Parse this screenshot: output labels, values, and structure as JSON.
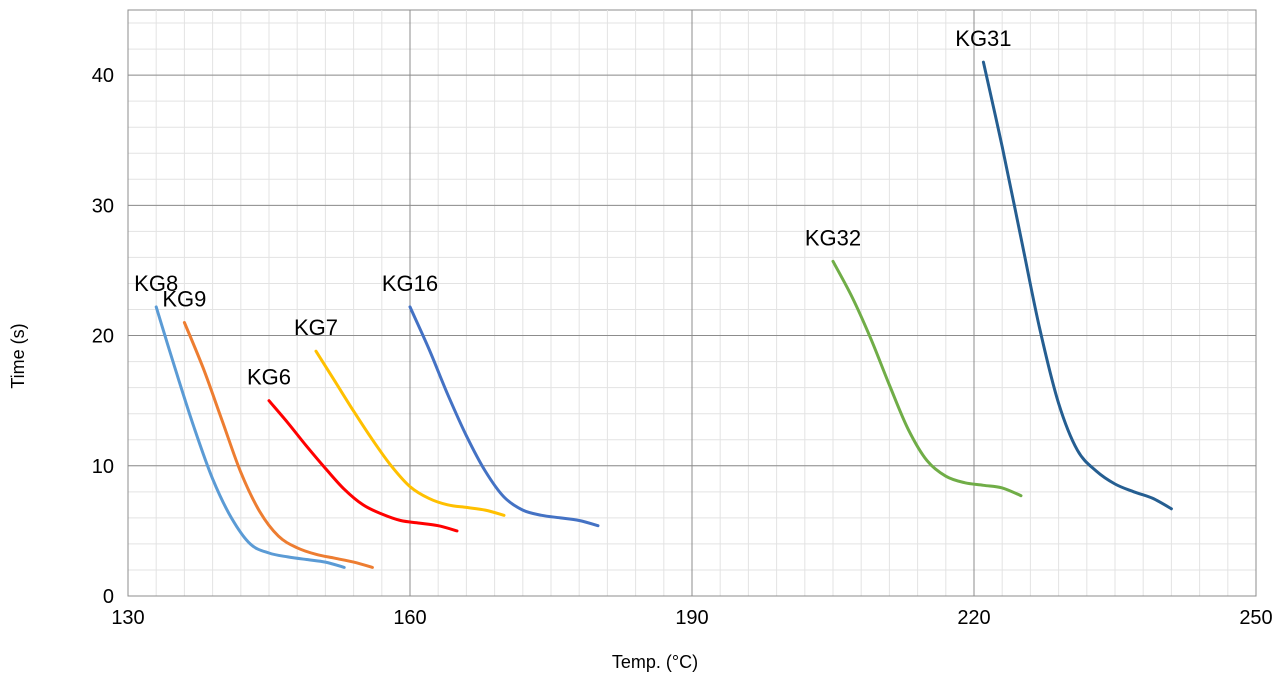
{
  "chart_data": {
    "type": "line",
    "title": "",
    "xlabel": "Temp. (°C)",
    "ylabel": "Time (s)",
    "xlim": [
      130,
      250
    ],
    "ylim": [
      0,
      45
    ],
    "xticks": [
      130,
      160,
      190,
      220,
      250
    ],
    "yticks": [
      0,
      10,
      20,
      30,
      40
    ],
    "major_grid": true,
    "minor_grid": true,
    "legend": "none",
    "series": [
      {
        "name": "KG8",
        "color": "#5b9bd5",
        "x": [
          133,
          135,
          137,
          139,
          141,
          143,
          145,
          147,
          149,
          151,
          153
        ],
        "y": [
          22.2,
          17.5,
          13.0,
          9.0,
          6.0,
          4.0,
          3.3,
          3.0,
          2.8,
          2.6,
          2.2
        ]
      },
      {
        "name": "KG9",
        "color": "#ed7d31",
        "x": [
          136,
          138,
          140,
          142,
          144,
          146,
          148,
          150,
          152,
          154,
          156
        ],
        "y": [
          21.0,
          17.5,
          13.5,
          9.5,
          6.5,
          4.6,
          3.7,
          3.2,
          2.9,
          2.6,
          2.2
        ]
      },
      {
        "name": "KG6",
        "color": "#ff0000",
        "x": [
          145,
          147,
          149,
          151,
          153,
          155,
          157,
          159,
          161,
          163,
          165
        ],
        "y": [
          15.0,
          13.3,
          11.5,
          9.8,
          8.2,
          7.0,
          6.3,
          5.8,
          5.6,
          5.4,
          5.0
        ]
      },
      {
        "name": "KG7",
        "color": "#ffc000",
        "x": [
          150,
          152,
          154,
          156,
          158,
          160,
          162,
          164,
          166,
          168,
          170
        ],
        "y": [
          18.8,
          16.5,
          14.2,
          12.0,
          10.0,
          8.4,
          7.5,
          7.0,
          6.8,
          6.6,
          6.2
        ]
      },
      {
        "name": "KG16",
        "color": "#4472c4",
        "x": [
          160,
          162,
          164,
          166,
          168,
          170,
          172,
          174,
          176,
          178,
          180
        ],
        "y": [
          22.2,
          19.0,
          15.5,
          12.3,
          9.6,
          7.6,
          6.6,
          6.2,
          6.0,
          5.8,
          5.4
        ]
      },
      {
        "name": "KG32",
        "color": "#70ad47",
        "x": [
          205,
          207,
          209,
          211,
          213,
          215,
          217,
          219,
          221,
          223,
          225
        ],
        "y": [
          25.7,
          23.0,
          19.8,
          16.2,
          12.8,
          10.4,
          9.2,
          8.7,
          8.5,
          8.3,
          7.7
        ]
      },
      {
        "name": "KG31",
        "color": "#255e91",
        "x": [
          221,
          223,
          225,
          227,
          229,
          231,
          233,
          235,
          237,
          239,
          241
        ],
        "y": [
          41.0,
          34.5,
          27.5,
          20.5,
          14.8,
          11.2,
          9.6,
          8.6,
          8.0,
          7.5,
          6.7
        ]
      }
    ]
  }
}
